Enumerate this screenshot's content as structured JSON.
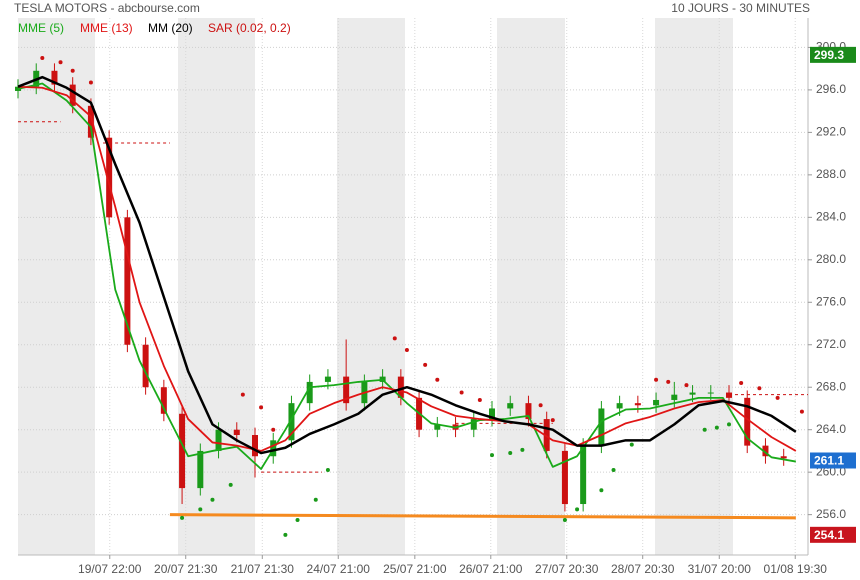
{
  "chart_data": {
    "type": "candlestick",
    "title": "TESLA MOTORS - abcbourse.com",
    "subtitle": "10 JOURS - 30 MINUTES",
    "xlim": [
      0,
      130
    ],
    "ylim": [
      252.2,
      300.7
    ],
    "xticks": [
      {
        "value": 15.1,
        "label": "19/07 22:00"
      },
      {
        "value": 27.6,
        "label": "20/07 21:30"
      },
      {
        "value": 40.2,
        "label": "21/07 21:30"
      },
      {
        "value": 52.7,
        "label": "24/07 21:00"
      },
      {
        "value": 65.3,
        "label": "25/07 21:00"
      },
      {
        "value": 77.8,
        "label": "26/07 21:00"
      },
      {
        "value": 90.3,
        "label": "27/07 20:30"
      },
      {
        "value": 102.8,
        "label": "28/07 20:30"
      },
      {
        "value": 115.4,
        "label": "31/07 20:00"
      },
      {
        "value": 127.9,
        "label": "01/08 19:30"
      }
    ],
    "yticks": [
      {
        "value": 256,
        "label": "256.0"
      },
      {
        "value": 260,
        "label": "260.0"
      },
      {
        "value": 264,
        "label": "264.0"
      },
      {
        "value": 268,
        "label": "268.0"
      },
      {
        "value": 272,
        "label": "272.0"
      },
      {
        "value": 276,
        "label": "276.0"
      },
      {
        "value": 280,
        "label": "280.0"
      },
      {
        "value": 284,
        "label": "284.0"
      },
      {
        "value": 288,
        "label": "288.0"
      },
      {
        "value": 292,
        "label": "292.0"
      },
      {
        "value": 296,
        "label": "296.0"
      },
      {
        "value": 300,
        "label": "300.0"
      }
    ],
    "grid": true,
    "up_color": "#1a9a1a",
    "down_color": "#cc1111",
    "candles": {
      "x": [
        0,
        3,
        6,
        9,
        12,
        15,
        18,
        21,
        24,
        27,
        30,
        33,
        36,
        39,
        42,
        45,
        48,
        51,
        54,
        57,
        60,
        63,
        66,
        69,
        72,
        75,
        78,
        81,
        84,
        87,
        90,
        93,
        96,
        99,
        102,
        105,
        108,
        111,
        114,
        117,
        120,
        123,
        126
      ],
      "open": [
        295.9,
        296.3,
        297.8,
        296.5,
        294.5,
        291.5,
        284.0,
        272.0,
        268.0,
        265.5,
        258.5,
        262.0,
        264.0,
        263.5,
        261.5,
        263.0,
        266.5,
        268.5,
        269.0,
        266.5,
        268.5,
        269.0,
        267.0,
        264.0,
        264.5,
        264.0,
        265.0,
        266.0,
        266.5,
        265.0,
        262.0,
        257.0,
        262.5,
        266.0,
        266.5,
        266.3,
        266.8,
        267.3,
        267.5,
        267.5,
        267.0,
        262.5,
        261.5
      ],
      "high": [
        297.0,
        298.5,
        298.5,
        297.2,
        295.2,
        292.2,
        284.7,
        272.7,
        268.7,
        266.2,
        262.7,
        264.7,
        264.7,
        264.2,
        263.7,
        267.2,
        269.2,
        269.7,
        272.5,
        269.2,
        269.7,
        269.7,
        267.7,
        265.2,
        265.2,
        265.7,
        266.7,
        267.2,
        267.2,
        265.7,
        262.7,
        263.2,
        266.7,
        267.2,
        267.2,
        267.5,
        268.5,
        268.2,
        268.2,
        268.2,
        267.7,
        263.2,
        262.2
      ],
      "low": [
        295.2,
        295.6,
        295.8,
        293.8,
        290.8,
        283.3,
        271.3,
        267.3,
        264.8,
        257.0,
        257.8,
        261.3,
        262.8,
        259.5,
        260.8,
        262.3,
        265.8,
        267.8,
        265.8,
        265.8,
        267.8,
        266.3,
        263.3,
        263.3,
        263.3,
        263.3,
        264.3,
        265.3,
        264.3,
        261.3,
        256.3,
        256.3,
        261.8,
        265.3,
        265.6,
        265.6,
        266.1,
        266.6,
        266.8,
        266.3,
        261.8,
        260.8,
        260.6
      ],
      "close": [
        296.3,
        297.8,
        296.5,
        294.5,
        291.5,
        284.0,
        272.0,
        268.0,
        265.5,
        258.5,
        262.0,
        264.0,
        263.5,
        261.5,
        263.0,
        266.5,
        268.5,
        269.0,
        266.5,
        268.5,
        269.0,
        267.0,
        264.0,
        264.5,
        264.0,
        265.0,
        266.0,
        266.5,
        265.0,
        262.0,
        257.0,
        262.5,
        266.0,
        266.5,
        266.3,
        266.8,
        267.3,
        267.5,
        267.5,
        267.0,
        262.5,
        261.5,
        261.3
      ]
    },
    "series": [
      {
        "name": "MME (5)",
        "color": "#1aaa1a",
        "x": [
          0,
          4,
          8,
          12,
          16,
          20,
          24,
          28,
          32,
          36,
          40,
          44,
          48,
          52,
          56,
          60,
          64,
          68,
          72,
          76,
          80,
          84,
          88,
          92,
          96,
          100,
          104,
          108,
          112,
          116,
          120,
          124,
          128
        ],
        "values": [
          296.1,
          296.6,
          295.0,
          292.5,
          277.2,
          270.5,
          266.0,
          261.5,
          262.0,
          262.4,
          260.3,
          264.0,
          268.0,
          268.2,
          268.5,
          268.7,
          266.5,
          264.6,
          264.2,
          264.9,
          265.0,
          265.3,
          260.5,
          261.5,
          264.8,
          265.9,
          266.0,
          266.5,
          267.0,
          267.0,
          263.2,
          261.4,
          261.0
        ]
      },
      {
        "name": "MME (13)",
        "color": "#e01515",
        "x": [
          0,
          4,
          8,
          12,
          16,
          20,
          24,
          28,
          32,
          36,
          40,
          44,
          48,
          52,
          56,
          60,
          64,
          68,
          72,
          76,
          80,
          84,
          88,
          92,
          96,
          100,
          104,
          108,
          112,
          116,
          120,
          124,
          128
        ],
        "values": [
          296.3,
          296.2,
          295.5,
          293.5,
          285.0,
          276.0,
          270.0,
          265.0,
          262.8,
          262.5,
          262.0,
          263.0,
          265.5,
          266.5,
          267.3,
          268.0,
          267.5,
          266.2,
          265.3,
          265.0,
          264.8,
          264.5,
          263.0,
          262.5,
          263.5,
          264.6,
          265.2,
          266.0,
          266.6,
          266.8,
          265.0,
          263.3,
          262.0
        ]
      },
      {
        "name": "MM (20)",
        "color": "#000000",
        "x": [
          0,
          4,
          8,
          12,
          16,
          20,
          24,
          28,
          32,
          36,
          40,
          44,
          48,
          52,
          56,
          60,
          64,
          68,
          72,
          76,
          80,
          84,
          88,
          92,
          96,
          100,
          104,
          108,
          112,
          116,
          120,
          124,
          128
        ],
        "values": [
          296.3,
          297.2,
          296.2,
          294.8,
          289.0,
          283.5,
          276.5,
          269.5,
          264.5,
          263.0,
          261.8,
          262.3,
          263.6,
          264.5,
          265.5,
          267.3,
          268.0,
          267.3,
          266.3,
          265.5,
          264.8,
          264.5,
          264.0,
          262.5,
          262.5,
          263.0,
          263.0,
          264.5,
          266.3,
          266.7,
          266.2,
          265.3,
          263.8
        ]
      }
    ],
    "sar": {
      "name": "SAR (0.02, 0.2)",
      "color": "#cc1111",
      "below_color": "#1a9a1a",
      "x": [
        4,
        7,
        9,
        12,
        27,
        30,
        32,
        35,
        37,
        40,
        42,
        44,
        46,
        49,
        51,
        62,
        64,
        67,
        69,
        73,
        76,
        78,
        81,
        83,
        86,
        88,
        90,
        92,
        96,
        98,
        101,
        105,
        107,
        110,
        113,
        115,
        117,
        119,
        122,
        125,
        129
      ],
      "values": [
        299.0,
        298.6,
        297.8,
        296.7,
        255.7,
        256.5,
        257.4,
        258.8,
        267.3,
        266.1,
        264.0,
        254.1,
        255.5,
        257.4,
        260.2,
        272.6,
        271.5,
        270.1,
        268.7,
        267.5,
        266.8,
        261.6,
        261.8,
        262.1,
        266.3,
        264.9,
        255.5,
        256.5,
        258.3,
        260.2,
        262.6,
        268.7,
        268.5,
        268.2,
        264.0,
        264.2,
        264.5,
        268.4,
        267.9,
        267.0,
        265.7
      ]
    },
    "support": {
      "color": "#f58a1f",
      "x": [
        25,
        128
      ],
      "values": [
        256.0,
        255.7
      ]
    },
    "levels": {
      "color": "#cc1111",
      "values": [
        293.0,
        291.0,
        260.0,
        264.6,
        255.8,
        267.3
      ],
      "x_start": [
        0,
        14,
        40,
        72,
        90,
        117
      ],
      "x_end": [
        7,
        25,
        50,
        88,
        104,
        130
      ]
    },
    "markers": [
      {
        "value": 299.3,
        "color": "#1a8a1a"
      },
      {
        "value": 261.1,
        "color": "#1e6fd0"
      },
      {
        "value": 254.1,
        "color": "#c8141e"
      }
    ]
  }
}
